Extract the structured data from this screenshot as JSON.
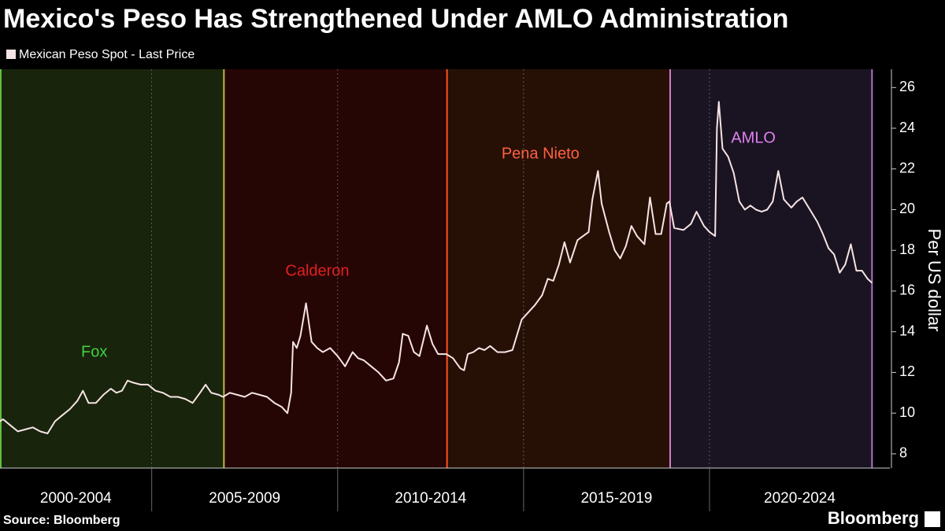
{
  "chart_data": {
    "type": "line",
    "title": "Mexico's Peso Has Strengthened Under AMLO Administration",
    "y_label": "Per US dollar",
    "source": "Source: Bloomberg",
    "brand": "Bloomberg",
    "xlim": [
      2000.92,
      2024.85
    ],
    "ylim": [
      7.3,
      26.9
    ],
    "yticks": [
      8,
      10,
      12,
      14,
      16,
      18,
      20,
      22,
      24,
      26
    ],
    "y_axis_side": "right",
    "x_periods": [
      {
        "label": "2000-2004",
        "start": 2000,
        "end": 2005
      },
      {
        "label": "2005-2009",
        "start": 2005,
        "end": 2010
      },
      {
        "label": "2010-2014",
        "start": 2010,
        "end": 2015
      },
      {
        "label": "2015-2019",
        "start": 2015,
        "end": 2020
      },
      {
        "label": "2020-2024",
        "start": 2020,
        "end": 2025
      }
    ],
    "administrations": [
      {
        "name": "Fox",
        "start": 2000.92,
        "end": 2006.92,
        "color": "#40d040",
        "line_color": "#60c040",
        "fill": "#18240c"
      },
      {
        "name": "Calderon",
        "start": 2006.92,
        "end": 2012.92,
        "color": "#e02020",
        "line_color": "#b8c040",
        "fill": "#260505"
      },
      {
        "name": "Pena Nieto",
        "start": 2012.92,
        "end": 2018.92,
        "color": "#ff6040",
        "line_color": "#ff5020",
        "fill": "#261006"
      },
      {
        "name": "AMLO",
        "start": 2018.92,
        "end": 2024.37,
        "color": "#e080f0",
        "line_color": "#d080c0",
        "fill": "#1a1422"
      }
    ],
    "end_marker": {
      "x": 2024.37,
      "color": "#b070c0"
    },
    "series": [
      {
        "name": "Mexican Peso Spot - Last Price",
        "color": "#f6e4e4",
        "x": [
          2000.92,
          2001.0,
          2001.2,
          2001.4,
          2001.6,
          2001.8,
          2002.0,
          2002.2,
          2002.4,
          2002.6,
          2002.8,
          2003.0,
          2003.15,
          2003.3,
          2003.5,
          2003.7,
          2003.9,
          2004.05,
          2004.2,
          2004.35,
          2004.5,
          2004.7,
          2004.9,
          2005.1,
          2005.3,
          2005.5,
          2005.7,
          2005.9,
          2006.1,
          2006.3,
          2006.45,
          2006.6,
          2006.8,
          2006.92,
          2007.1,
          2007.3,
          2007.5,
          2007.7,
          2007.9,
          2008.1,
          2008.3,
          2008.5,
          2008.65,
          2008.75,
          2008.8,
          2008.9,
          2009.0,
          2009.15,
          2009.3,
          2009.45,
          2009.6,
          2009.8,
          2010.0,
          2010.2,
          2010.4,
          2010.55,
          2010.7,
          2010.9,
          2011.1,
          2011.3,
          2011.5,
          2011.65,
          2011.75,
          2011.9,
          2012.05,
          2012.2,
          2012.4,
          2012.55,
          2012.7,
          2012.92,
          2013.1,
          2013.3,
          2013.4,
          2013.5,
          2013.65,
          2013.8,
          2013.95,
          2014.1,
          2014.3,
          2014.5,
          2014.7,
          2014.85,
          2014.95,
          2015.1,
          2015.3,
          2015.5,
          2015.65,
          2015.8,
          2015.95,
          2016.1,
          2016.25,
          2016.45,
          2016.6,
          2016.75,
          2016.85,
          2017.0,
          2017.1,
          2017.3,
          2017.45,
          2017.6,
          2017.75,
          2017.9,
          2018.05,
          2018.25,
          2018.4,
          2018.55,
          2018.7,
          2018.85,
          2018.92,
          2019.05,
          2019.3,
          2019.5,
          2019.65,
          2019.85,
          2020.0,
          2020.15,
          2020.2,
          2020.25,
          2020.35,
          2020.5,
          2020.65,
          2020.8,
          2020.95,
          2021.1,
          2021.25,
          2021.4,
          2021.55,
          2021.7,
          2021.85,
          2022.0,
          2022.2,
          2022.35,
          2022.5,
          2022.7,
          2022.9,
          2023.05,
          2023.2,
          2023.35,
          2023.5,
          2023.65,
          2023.8,
          2023.95,
          2024.1,
          2024.25,
          2024.37
        ],
        "values": [
          9.6,
          9.7,
          9.4,
          9.1,
          9.2,
          9.3,
          9.1,
          9.0,
          9.6,
          9.9,
          10.2,
          10.6,
          11.1,
          10.5,
          10.5,
          10.9,
          11.2,
          11.0,
          11.1,
          11.6,
          11.5,
          11.4,
          11.4,
          11.1,
          11.0,
          10.8,
          10.8,
          10.7,
          10.5,
          11.0,
          11.4,
          11.0,
          10.9,
          10.8,
          11.0,
          10.9,
          10.8,
          11.0,
          10.9,
          10.8,
          10.5,
          10.3,
          10.0,
          11.0,
          13.5,
          13.2,
          13.8,
          15.4,
          13.5,
          13.2,
          13.0,
          13.2,
          12.8,
          12.3,
          13.0,
          12.7,
          12.6,
          12.3,
          12.0,
          11.6,
          11.7,
          12.5,
          13.9,
          13.8,
          13.0,
          12.8,
          14.3,
          13.4,
          12.9,
          12.9,
          12.7,
          12.2,
          12.1,
          12.9,
          13.0,
          13.2,
          13.1,
          13.3,
          13.0,
          13.0,
          13.1,
          14.0,
          14.6,
          14.9,
          15.3,
          15.8,
          16.6,
          16.5,
          17.3,
          18.4,
          17.4,
          18.5,
          18.7,
          18.9,
          20.5,
          21.9,
          20.3,
          18.9,
          18.0,
          17.6,
          18.2,
          19.2,
          18.7,
          18.3,
          20.6,
          18.8,
          18.8,
          20.3,
          20.4,
          19.1,
          19.0,
          19.3,
          19.9,
          19.2,
          18.9,
          18.7,
          24.0,
          25.3,
          23.0,
          22.6,
          21.8,
          20.4,
          20.0,
          20.2,
          20.0,
          19.9,
          20.0,
          20.4,
          21.9,
          20.5,
          20.1,
          20.4,
          20.6,
          20.0,
          19.4,
          18.8,
          18.1,
          17.8,
          16.9,
          17.3,
          18.3,
          17.0,
          17.0,
          16.6,
          16.4
        ]
      }
    ]
  }
}
